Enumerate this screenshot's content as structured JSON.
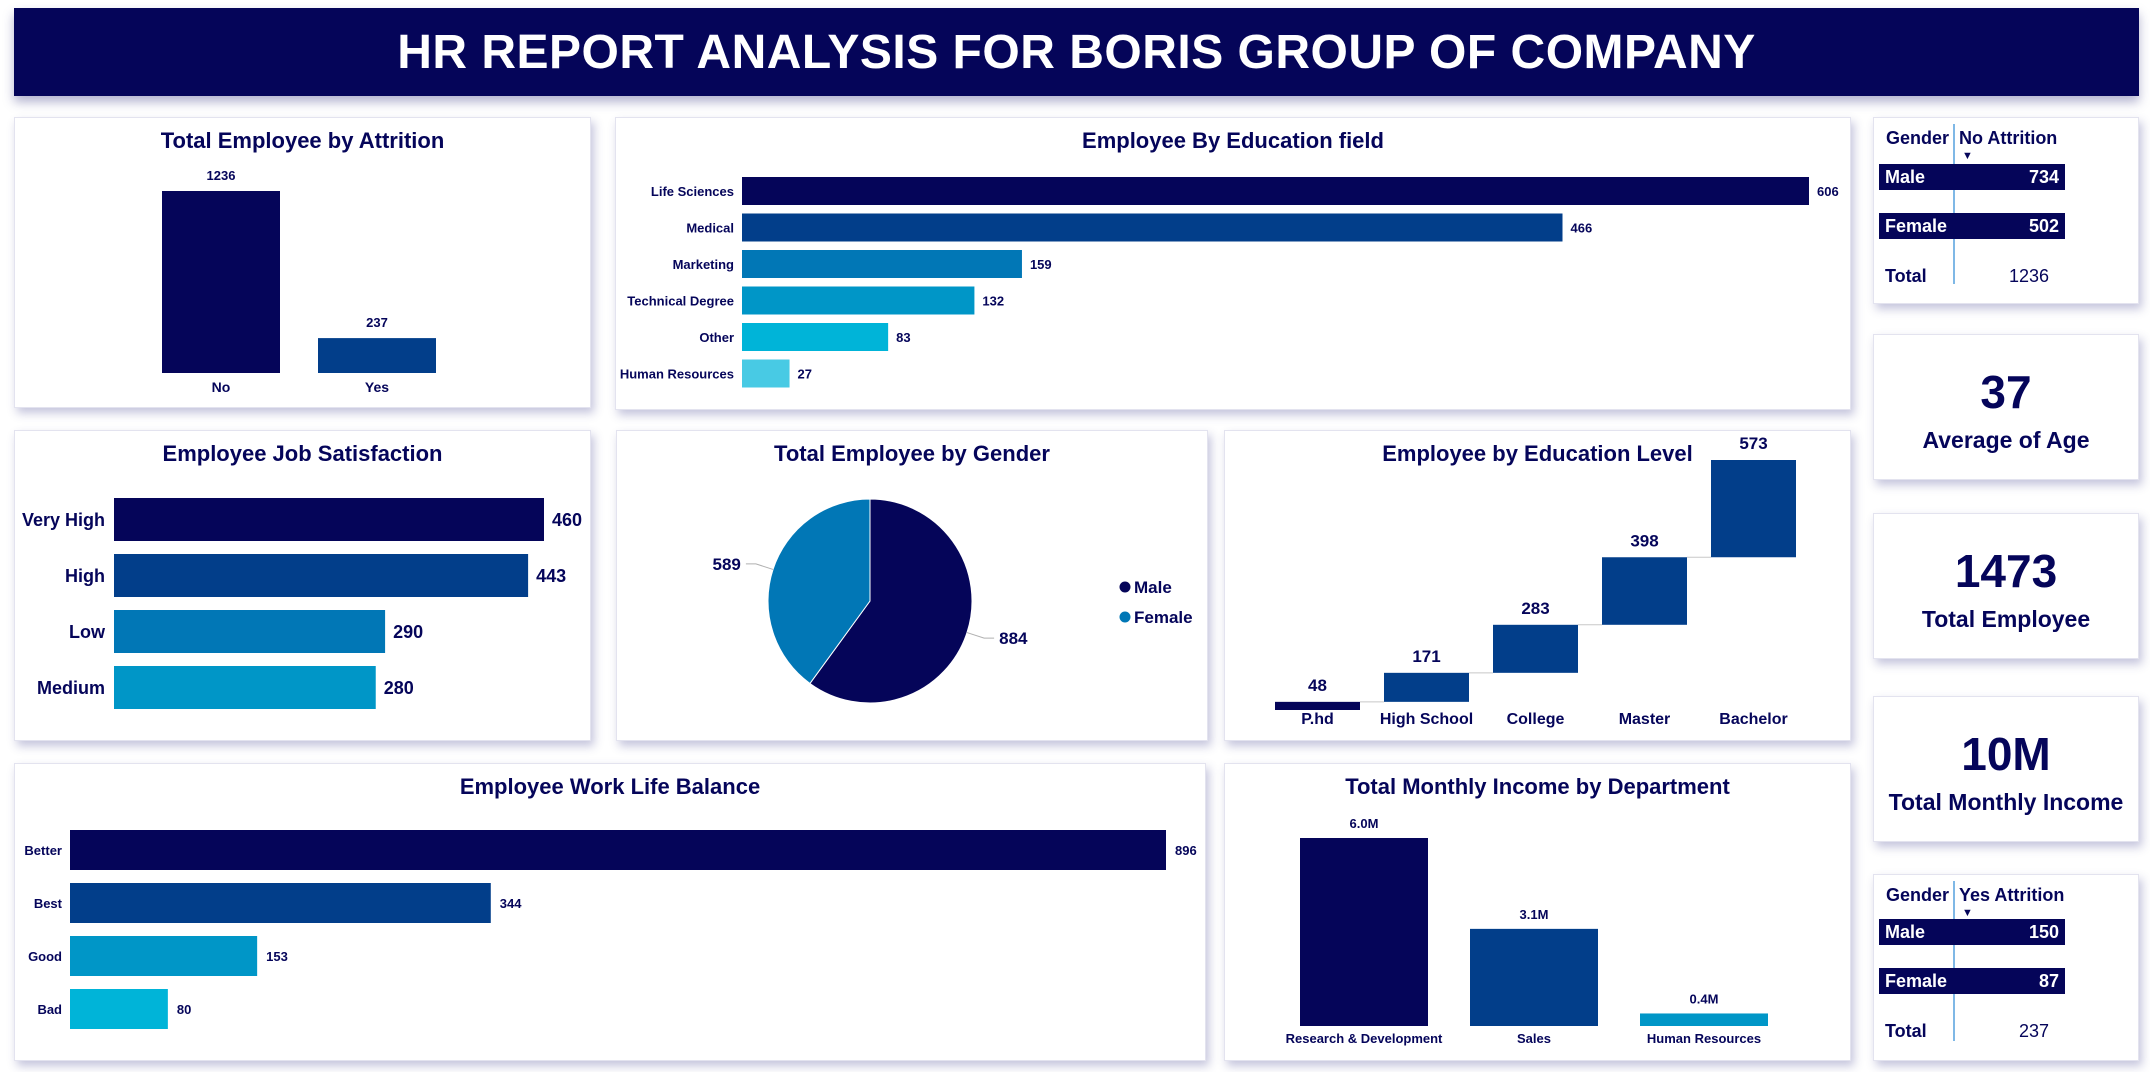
{
  "header": {
    "title": "HR REPORT ANALYSIS FOR BORIS GROUP OF COMPANY"
  },
  "colors": {
    "navy": "#050559",
    "blue": "#023e8a",
    "mid": "#0177b6",
    "teal": "#0096c7",
    "cyan": "#00b4d8",
    "light": "#48cae4"
  },
  "chart_data": [
    {
      "id": "attrition",
      "type": "bar",
      "title": "Total Employee by Attrition",
      "categories": [
        "No",
        "Yes"
      ],
      "values": [
        1236,
        237
      ],
      "data_labels": [
        "1236",
        "237"
      ]
    },
    {
      "id": "education_field",
      "type": "bar",
      "orientation": "horizontal",
      "title": "Employee By Education field",
      "categories": [
        "Life Sciences",
        "Medical",
        "Marketing",
        "Technical Degree",
        "Other",
        "Human Resources"
      ],
      "values": [
        606,
        466,
        159,
        132,
        83,
        27
      ],
      "data_labels": [
        "606",
        "466",
        "159",
        "132",
        "83",
        "27"
      ]
    },
    {
      "id": "job_satisfaction",
      "type": "bar",
      "orientation": "horizontal",
      "title": "Employee Job Satisfaction",
      "categories": [
        "Very High",
        "High",
        "Low",
        "Medium"
      ],
      "values": [
        460,
        443,
        290,
        280
      ],
      "data_labels": [
        "460",
        "443",
        "290",
        "280"
      ]
    },
    {
      "id": "gender",
      "type": "pie",
      "title": "Total Employee by Gender",
      "categories": [
        "Male",
        "Female"
      ],
      "values": [
        884,
        589
      ],
      "data_labels": [
        "884",
        "589"
      ],
      "legend": {
        "position": "right",
        "entries": [
          "Male",
          "Female"
        ]
      }
    },
    {
      "id": "education_level",
      "type": "waterfall",
      "title": "Employee by Education Level",
      "categories": [
        "P.hd",
        "High School",
        "College",
        "Master",
        "Bachelor"
      ],
      "values": [
        48,
        171,
        283,
        398,
        573
      ],
      "data_labels": [
        "48",
        "171",
        "283",
        "398",
        "573"
      ]
    },
    {
      "id": "work_life_balance",
      "type": "bar",
      "orientation": "horizontal",
      "title": "Employee Work Life Balance",
      "categories": [
        "Better",
        "Best",
        "Good",
        "Bad"
      ],
      "values": [
        896,
        344,
        153,
        80
      ],
      "data_labels": [
        "896",
        "344",
        "153",
        "80"
      ]
    },
    {
      "id": "income_department",
      "type": "bar",
      "title": "Total Monthly Income by Department",
      "categories": [
        "Research & Development",
        "Sales",
        "Human Resources"
      ],
      "values": [
        6.0,
        3.1,
        0.4
      ],
      "unit": "M",
      "data_labels": [
        "6.0M",
        "3.1M",
        "0.4M"
      ]
    },
    {
      "id": "no_attrition_table",
      "type": "table",
      "columns": [
        "Gender",
        "No Attrition"
      ],
      "rows": [
        [
          "Male",
          "734"
        ],
        [
          "Female",
          "502"
        ]
      ],
      "total": [
        "Total",
        "1236"
      ]
    },
    {
      "id": "yes_attrition_table",
      "type": "table",
      "columns": [
        "Gender",
        "Yes Attrition"
      ],
      "rows": [
        [
          "Male",
          "150"
        ],
        [
          "Female",
          "87"
        ]
      ],
      "total": [
        "Total",
        "237"
      ]
    }
  ],
  "kpis": {
    "age": {
      "value": "37",
      "label": "Average of Age"
    },
    "employees": {
      "value": "1473",
      "label": "Total Employee"
    },
    "income": {
      "value": "10M",
      "label": "Total Monthly Income"
    }
  }
}
